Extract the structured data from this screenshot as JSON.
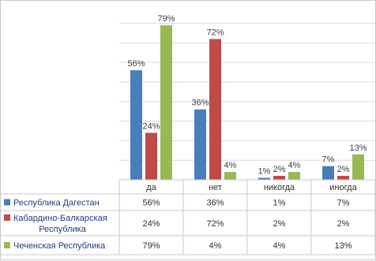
{
  "chart_data": {
    "type": "bar",
    "categories": [
      "да",
      "нет",
      "никогда",
      "иногда"
    ],
    "series": [
      {
        "name": "Республика Дагестан",
        "color": "#4a7ebb",
        "values": [
          56,
          36,
          1,
          7
        ],
        "labels": [
          "56%",
          "36%",
          "1%",
          "7%"
        ]
      },
      {
        "name": "Кабардино-Балкарская Республика",
        "name_lines": [
          "Кабардино-Балкарская",
          "Республика"
        ],
        "color": "#be4b48",
        "values": [
          24,
          72,
          2,
          2
        ],
        "labels": [
          "24%",
          "72%",
          "2%",
          "2%"
        ]
      },
      {
        "name": "Чеченская Республика",
        "color": "#98b954",
        "values": [
          79,
          4,
          4,
          13
        ],
        "labels": [
          "79%",
          "4%",
          "4%",
          "13%"
        ]
      }
    ],
    "ylim": [
      0,
      80
    ],
    "grid": true,
    "legend": "data-table-below"
  }
}
